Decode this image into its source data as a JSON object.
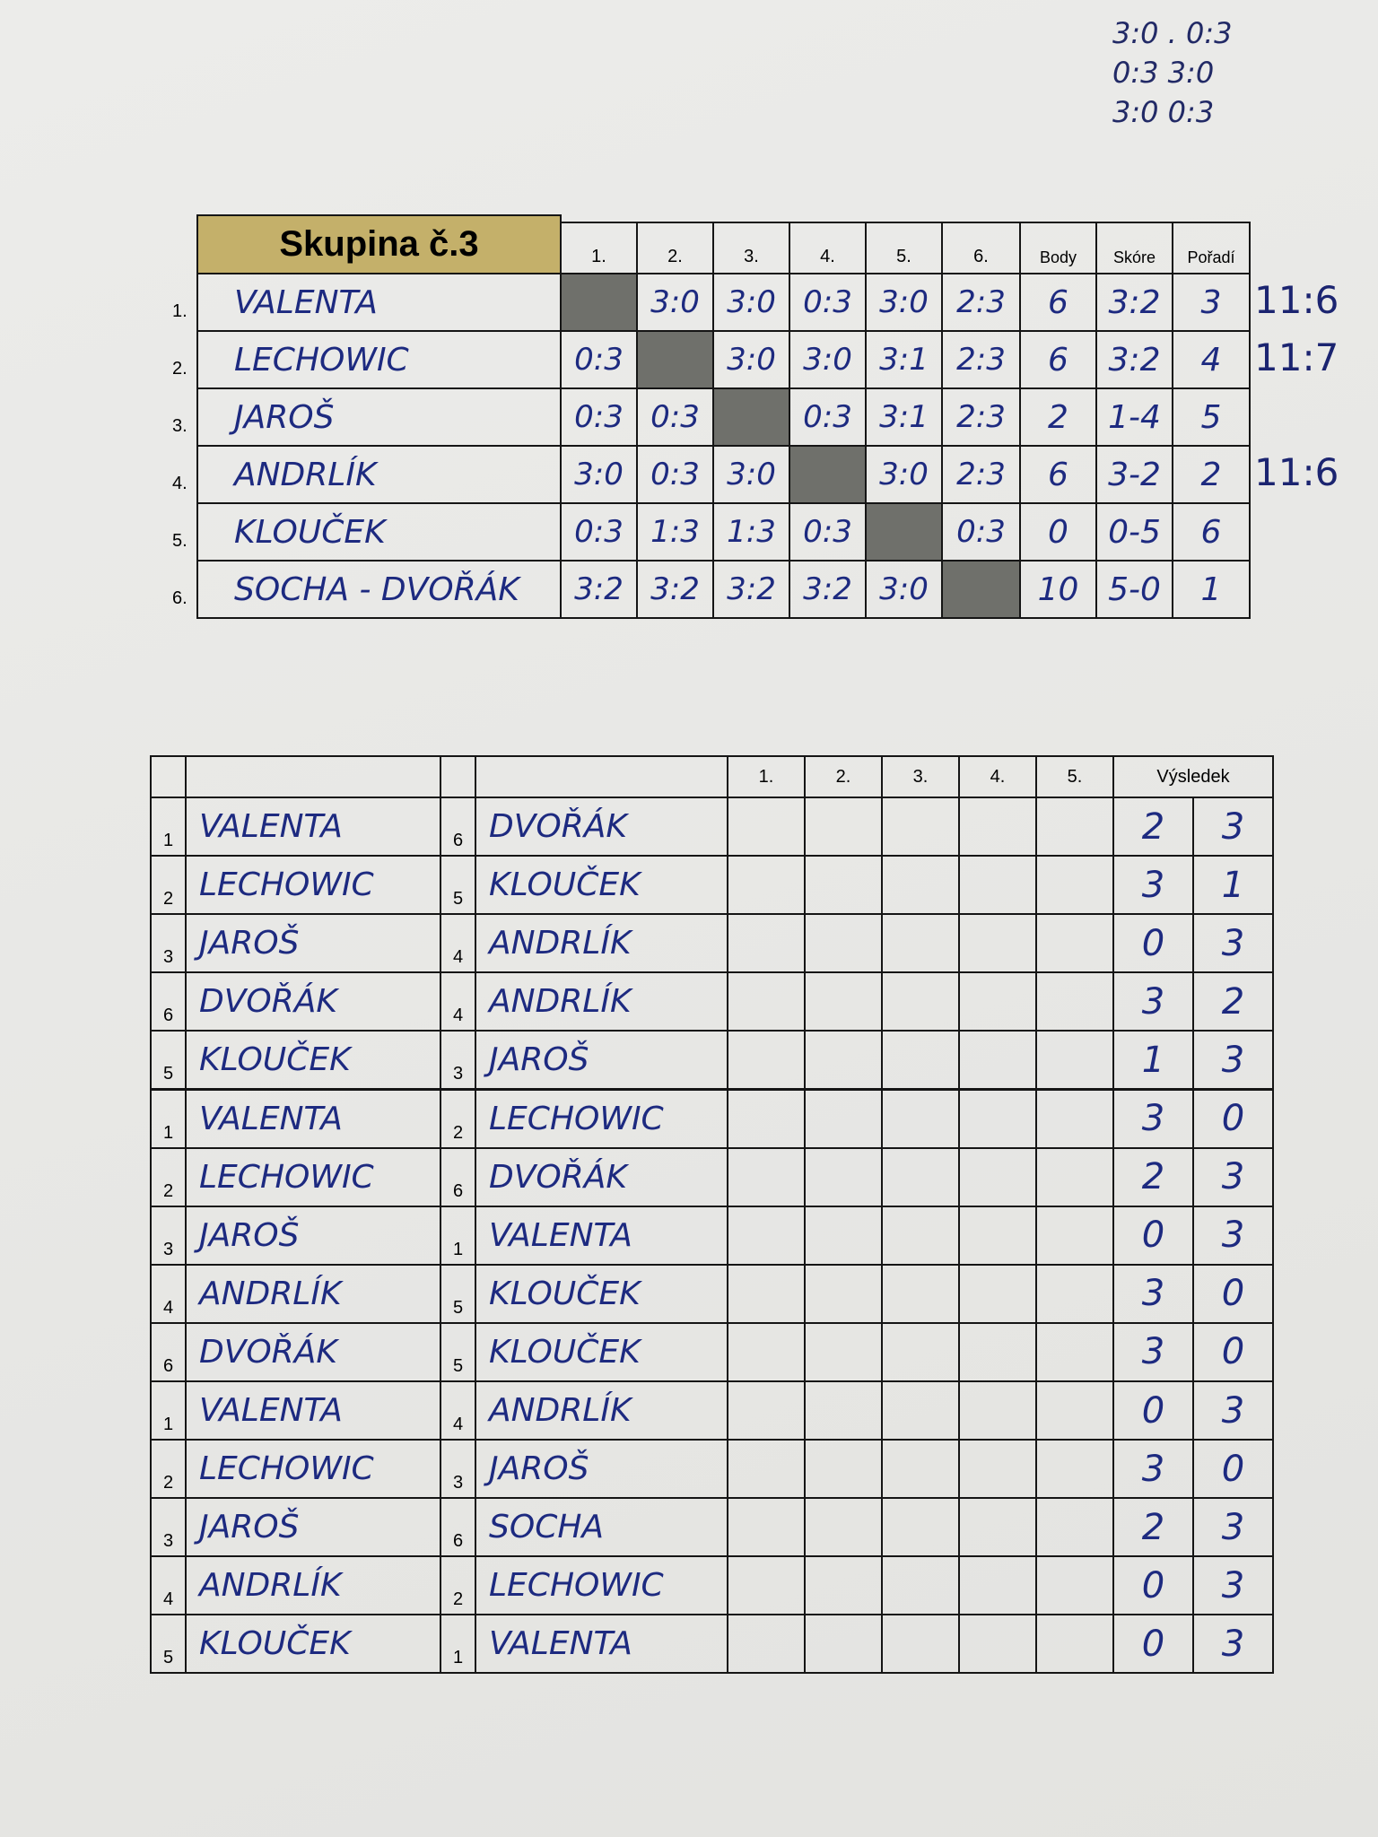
{
  "notes": [
    "3:0 . 0:3",
    "0:3  3:0",
    "3:0  0:3"
  ],
  "group_table": {
    "title": "Skupina č.3",
    "columns": [
      "1.",
      "2.",
      "3.",
      "4.",
      "5.",
      "6.",
      "Body",
      "Skóre",
      "Pořadí"
    ],
    "rows": [
      {
        "number": "1.",
        "name": "VALENTA",
        "results": [
          null,
          "3:0",
          "3:0",
          "0:3",
          "3:0",
          "2:3"
        ],
        "points": "6",
        "score": "3:2",
        "rank": "3",
        "note": "11:6"
      },
      {
        "number": "2.",
        "name": "LECHOWIC",
        "results": [
          "0:3",
          null,
          "3:0",
          "3:0",
          "3:1",
          "2:3"
        ],
        "points": "6",
        "score": "3:2",
        "rank": "4",
        "note": "11:7"
      },
      {
        "number": "3.",
        "name": "JAROŠ",
        "results": [
          "0:3",
          "0:3",
          null,
          "0:3",
          "3:1",
          "2:3"
        ],
        "points": "2",
        "score": "1-4",
        "rank": "5",
        "note": null
      },
      {
        "number": "4.",
        "name": "ANDRLÍK",
        "results": [
          "3:0",
          "0:3",
          "3:0",
          null,
          "3:0",
          "2:3"
        ],
        "points": "6",
        "score": "3-2",
        "rank": "2",
        "note": "11:6"
      },
      {
        "number": "5.",
        "name": "KLOUČEK",
        "results": [
          "0:3",
          "1:3",
          "1:3",
          "0:3",
          null,
          "0:3"
        ],
        "points": "0",
        "score": "0-5",
        "rank": "6",
        "note": null
      },
      {
        "number": "6.",
        "name": "SOCHA - DVOŘÁK",
        "results": [
          "3:2",
          "3:2",
          "3:2",
          "3:2",
          "3:0",
          null
        ],
        "points": "10",
        "score": "5-0",
        "rank": "1",
        "note": null
      }
    ]
  },
  "match_table": {
    "columns": [
      "1.",
      "2.",
      "3.",
      "4.",
      "5.",
      "Výsledek"
    ],
    "rows": [
      [
        "1",
        "VALENTA",
        "6",
        "DVOŘÁK",
        "2",
        "3"
      ],
      [
        "2",
        "LECHOWIC",
        "5",
        "KLOUČEK",
        "3",
        "1"
      ],
      [
        "3",
        "JAROŠ",
        "4",
        "ANDRLÍK",
        "0",
        "3"
      ],
      [
        "6",
        "DVOŘÁK",
        "4",
        "ANDRLÍK",
        "3",
        "2"
      ],
      [
        "5",
        "KLOUČEK",
        "3",
        "JAROŠ",
        "1",
        "3"
      ],
      [
        "1",
        "VALENTA",
        "2",
        "LECHOWIC",
        "3",
        "0"
      ],
      [
        "2",
        "LECHOWIC",
        "6",
        "DVOŘÁK",
        "2",
        "3"
      ],
      [
        "3",
        "JAROŠ",
        "1",
        "VALENTA",
        "0",
        "3"
      ],
      [
        "4",
        "ANDRLÍK",
        "5",
        "KLOUČEK",
        "3",
        "0"
      ],
      [
        "6",
        "DVOŘÁK",
        "5",
        "KLOUČEK",
        "3",
        "0"
      ],
      [
        "1",
        "VALENTA",
        "4",
        "ANDRLÍK",
        "0",
        "3"
      ],
      [
        "2",
        "LECHOWIC",
        "3",
        "JAROŠ",
        "3",
        "0"
      ],
      [
        "3",
        "JAROŠ",
        "6",
        "SOCHA",
        "2",
        "3"
      ],
      [
        "4",
        "ANDRLÍK",
        "2",
        "LECHOWIC",
        "0",
        "3"
      ],
      [
        "5",
        "KLOUČEK",
        "1",
        "VALENTA",
        "0",
        "3"
      ]
    ]
  }
}
